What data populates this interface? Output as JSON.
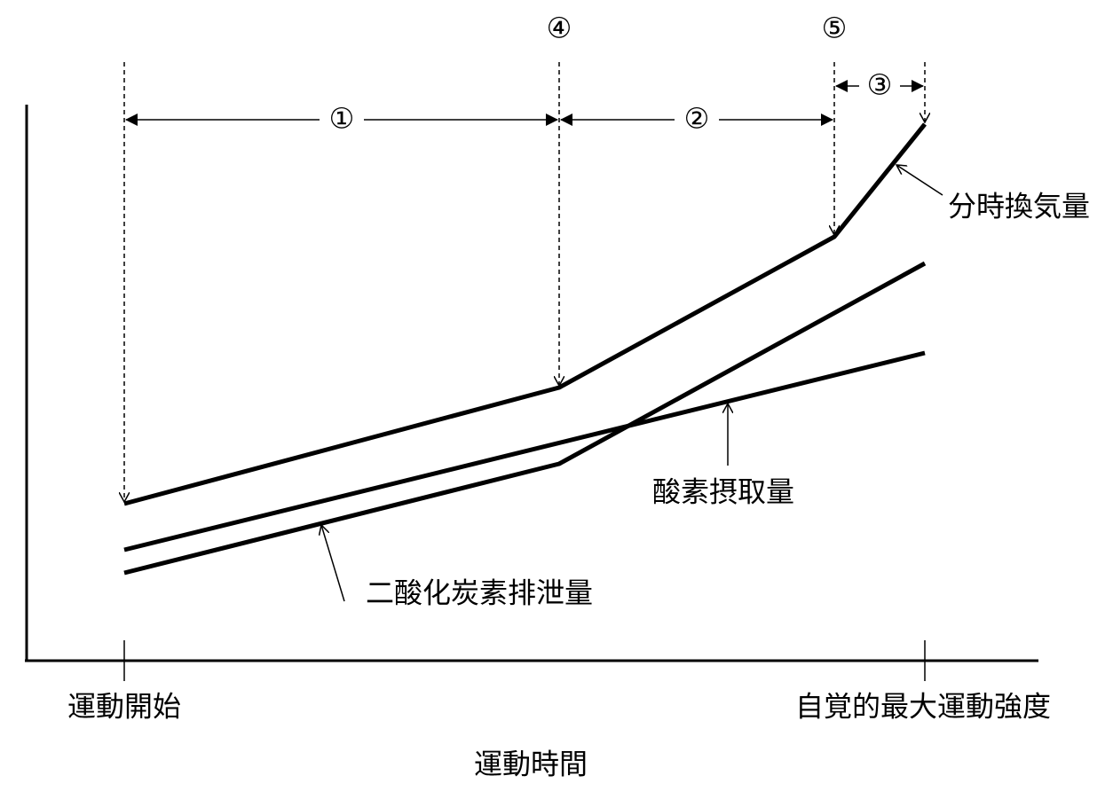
{
  "markers": [
    "④",
    "⑤"
  ],
  "intervals": [
    "①",
    "②",
    "③"
  ],
  "curves": {
    "minute_ventilation": "分時換気量",
    "oxygen_uptake": "酸素摂取量",
    "co2_output": "二酸化炭素排泄量"
  },
  "x_axis": {
    "start": "運動開始",
    "end": "自覚的最大運動強度",
    "title": "運動時間"
  }
}
